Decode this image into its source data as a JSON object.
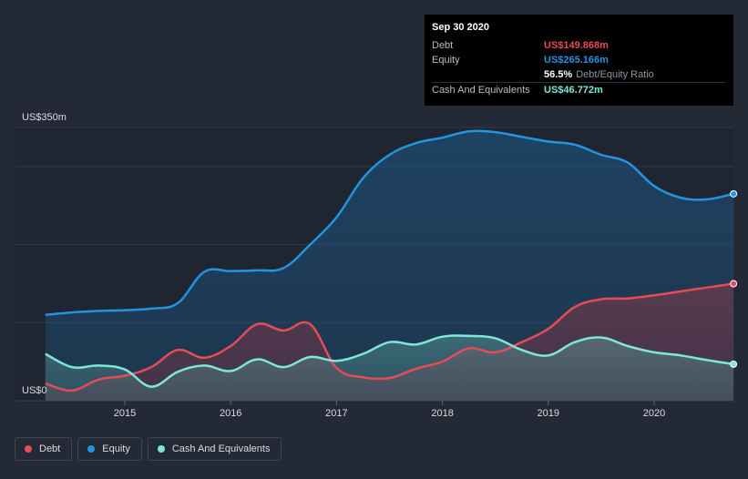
{
  "chart_data": {
    "type": "area",
    "title": "",
    "y_unit_label_top": "US$350m",
    "y_unit_label_bottom": "US$0",
    "ylim": [
      0,
      350
    ],
    "xlim": [
      2014.25,
      2020.75
    ],
    "x_ticks": [
      2015,
      2016,
      2017,
      2018,
      2019,
      2020
    ],
    "x_tick_labels": [
      "2015",
      "2016",
      "2017",
      "2018",
      "2019",
      "2020"
    ],
    "series": [
      {
        "name": "Equity",
        "color": "#2394df",
        "x": [
          2014.25,
          2014.5,
          2014.75,
          2015.0,
          2015.25,
          2015.5,
          2015.75,
          2016.0,
          2016.25,
          2016.5,
          2016.75,
          2017.0,
          2017.25,
          2017.5,
          2017.75,
          2018.0,
          2018.25,
          2018.5,
          2018.75,
          2019.0,
          2019.25,
          2019.5,
          2019.75,
          2020.0,
          2020.25,
          2020.5,
          2020.75
        ],
        "values": [
          110,
          113,
          115,
          116,
          118,
          125,
          165,
          166,
          167,
          170,
          200,
          235,
          285,
          315,
          330,
          337,
          345,
          344,
          338,
          332,
          328,
          315,
          305,
          275,
          260,
          258,
          265
        ]
      },
      {
        "name": "Debt",
        "color": "#e64b56",
        "x": [
          2014.25,
          2014.5,
          2014.75,
          2015.0,
          2015.25,
          2015.5,
          2015.75,
          2016.0,
          2016.25,
          2016.5,
          2016.75,
          2017.0,
          2017.25,
          2017.5,
          2017.75,
          2018.0,
          2018.25,
          2018.5,
          2018.75,
          2019.0,
          2019.25,
          2019.5,
          2019.75,
          2020.0,
          2020.25,
          2020.5,
          2020.75
        ],
        "values": [
          22,
          13,
          27,
          32,
          43,
          65,
          55,
          70,
          98,
          90,
          98,
          42,
          30,
          29,
          41,
          50,
          67,
          62,
          75,
          92,
          120,
          130,
          131,
          135,
          140,
          145,
          149.868
        ]
      },
      {
        "name": "Cash And Equivalents",
        "color": "#7de8d8",
        "x": [
          2014.25,
          2014.5,
          2014.75,
          2015.0,
          2015.25,
          2015.5,
          2015.75,
          2016.0,
          2016.25,
          2016.5,
          2016.75,
          2017.0,
          2017.25,
          2017.5,
          2017.75,
          2018.0,
          2018.25,
          2018.5,
          2018.75,
          2019.0,
          2019.25,
          2019.5,
          2019.75,
          2020.0,
          2020.25,
          2020.5,
          2020.75
        ],
        "values": [
          60,
          43,
          45,
          40,
          18,
          37,
          45,
          38,
          53,
          43,
          56,
          51,
          60,
          75,
          72,
          82,
          83,
          80,
          65,
          58,
          75,
          81,
          70,
          62,
          58,
          52,
          46.772
        ]
      }
    ]
  },
  "tooltip": {
    "date": "Sep 30 2020",
    "debt_label": "Debt",
    "debt_value": "US$149.868m",
    "equity_label": "Equity",
    "equity_value": "US$265.166m",
    "ratio_pct": "56.5%",
    "ratio_label": "Debt/Equity Ratio",
    "cash_label": "Cash And Equivalents",
    "cash_value": "US$46.772m"
  },
  "legend": [
    {
      "label": "Debt",
      "color": "#e64b56"
    },
    {
      "label": "Equity",
      "color": "#2394df"
    },
    {
      "label": "Cash And Equivalents",
      "color": "#7de8d8"
    }
  ]
}
